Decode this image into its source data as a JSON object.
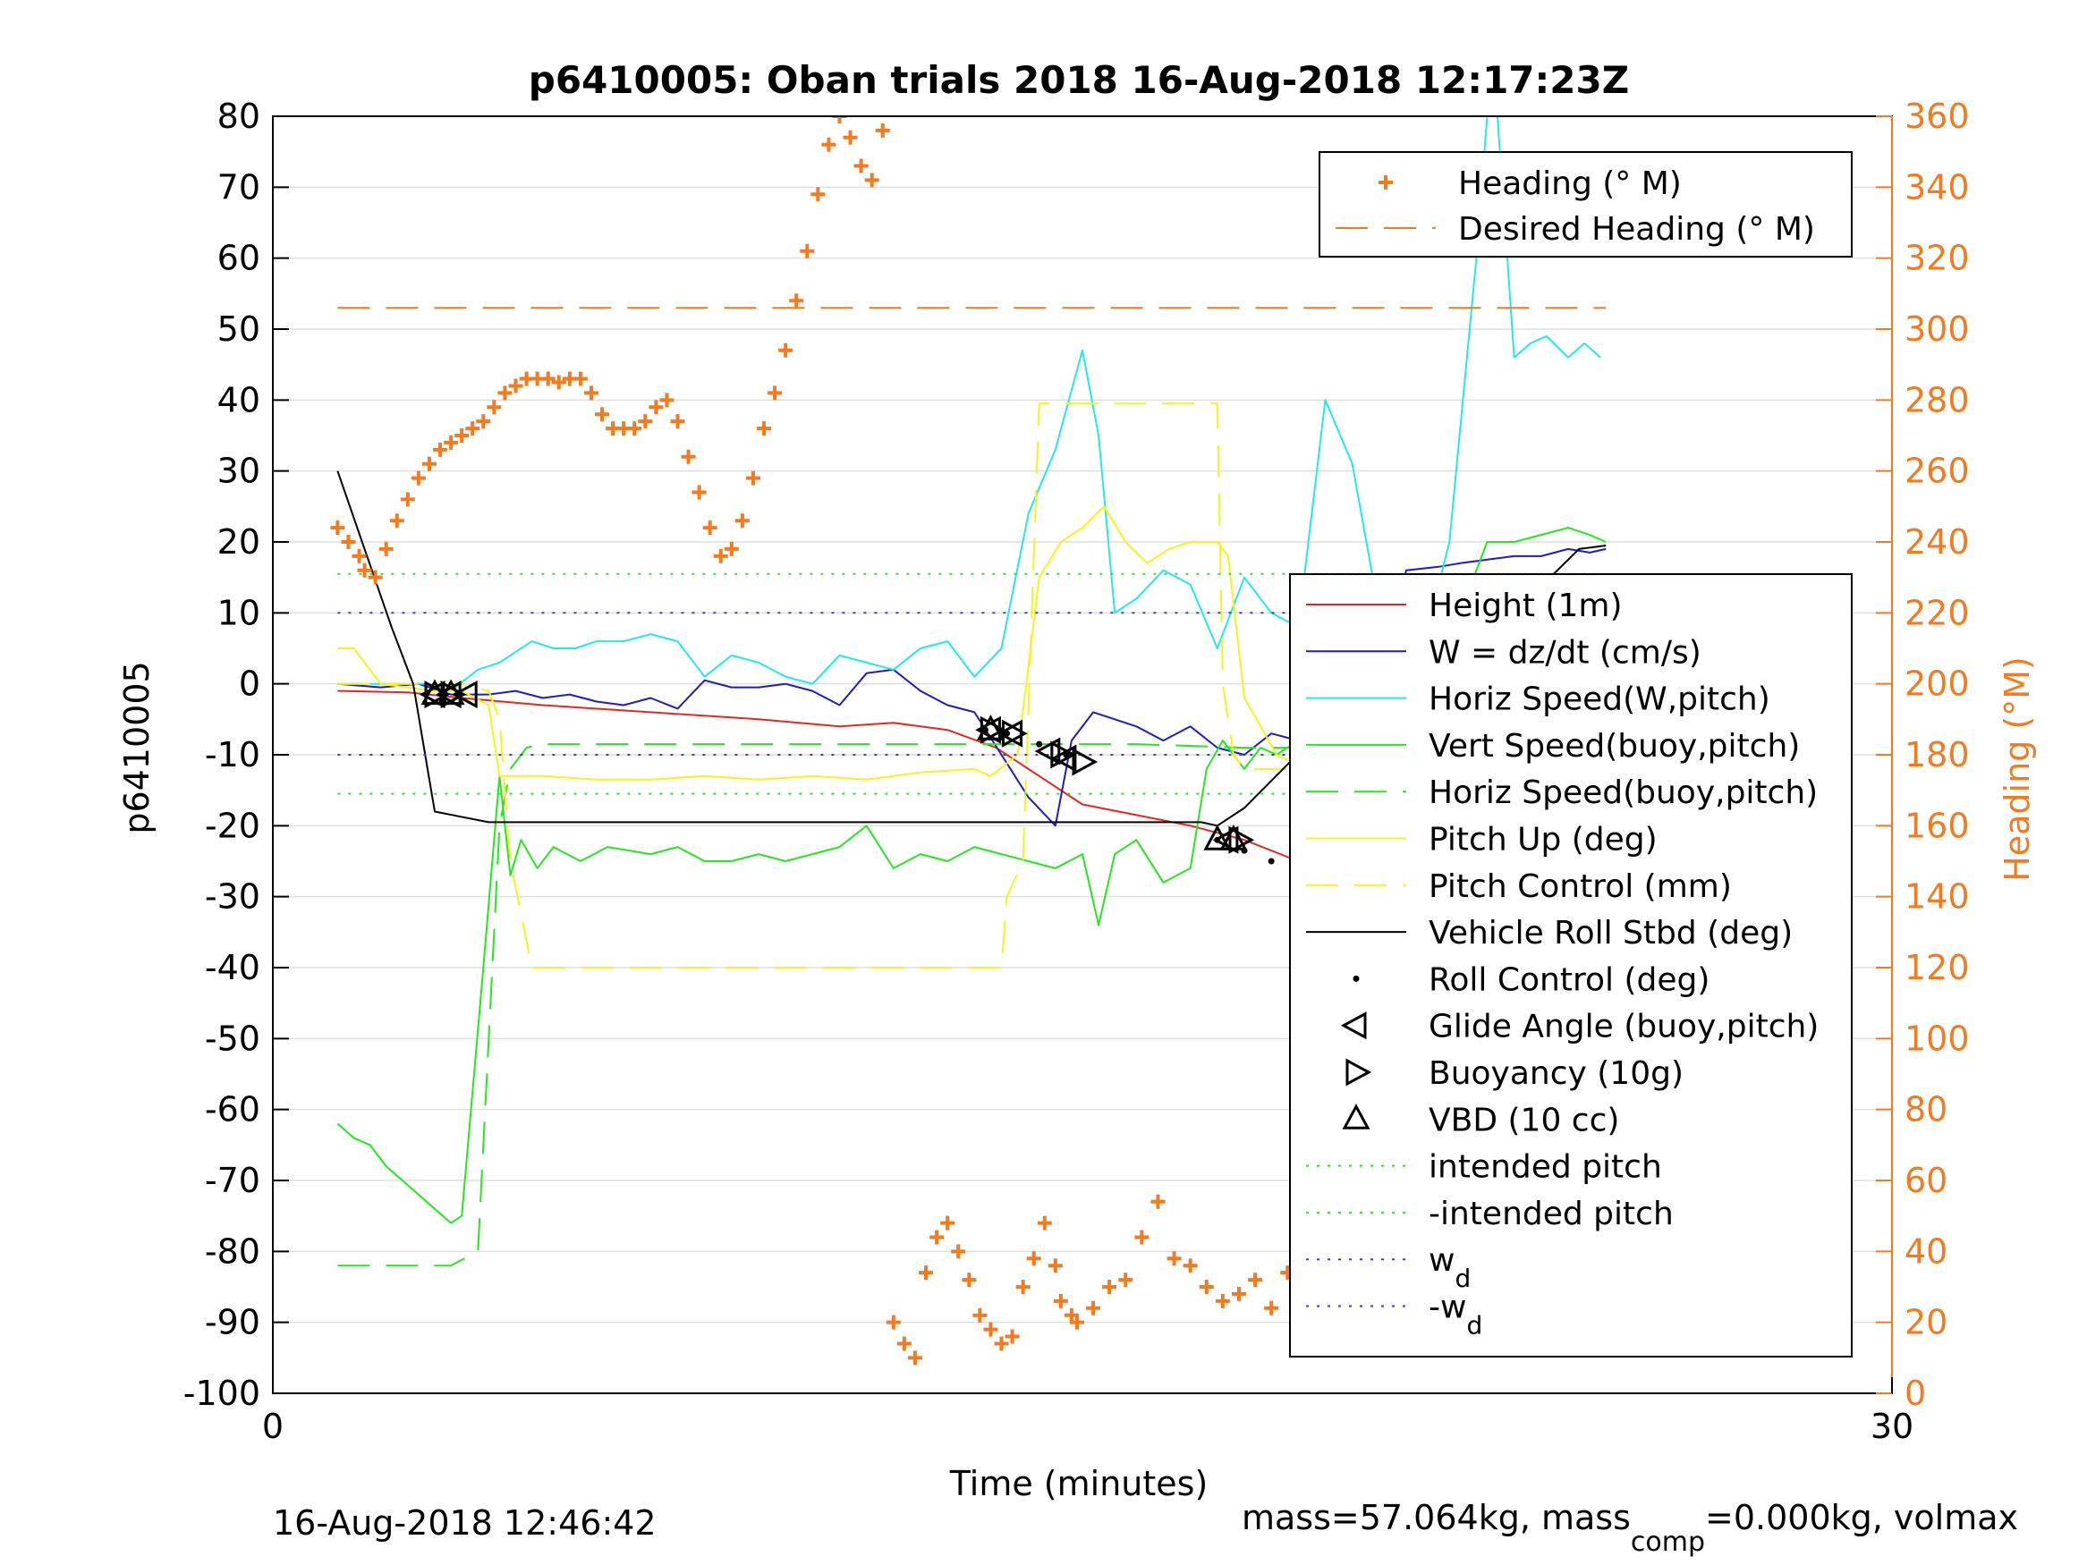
{
  "figure": {
    "title": "p6410005: Oban trials 2018 16-Aug-2018 12:17:23Z",
    "footer_left": "16-Aug-2018 12:46:42",
    "footer_right_prefix": "mass=57.064kg, mass",
    "footer_right_sub": "comp",
    "footer_right_suffix": "=0.000kg, volmax"
  },
  "colors": {
    "height": "#e8261f",
    "w": "#1c1cc8",
    "cyan": "#22e8e8",
    "green": "#22e81e",
    "yellow": "#f4f41c",
    "black": "#000000",
    "orange": "#f47a20",
    "blue_dot": "#3a3ae8"
  },
  "chart_data": {
    "type": "line",
    "xlabel": "Time (minutes)",
    "ylabel": "p6410005",
    "y2label": "Heading (°M)",
    "xlim": [
      0,
      30
    ],
    "ylim": [
      -100,
      80
    ],
    "y2lim": [
      0,
      360
    ],
    "xticks": [
      0,
      30
    ],
    "yticks": [
      80,
      70,
      60,
      50,
      40,
      30,
      20,
      10,
      0,
      -10,
      -20,
      -30,
      -40,
      -50,
      -60,
      -70,
      -80,
      -90,
      -100
    ],
    "y2ticks": [
      360,
      340,
      320,
      300,
      280,
      260,
      240,
      220,
      200,
      180,
      160,
      140,
      120,
      100,
      80,
      60,
      40,
      20,
      0
    ],
    "grid": true,
    "legend_top": {
      "placement": "top-right",
      "entries": [
        {
          "label": "Heading (° M)",
          "style": "plus",
          "color": "#f47a20"
        },
        {
          "label": "Desired Heading (° M)",
          "style": "dashed",
          "color": "#f47a20"
        }
      ]
    },
    "legend_main": {
      "placement": "right",
      "entries": [
        {
          "label": "Height (1m)",
          "style": "solid",
          "color": "#e8261f"
        },
        {
          "label": "W = dz/dt (cm/s)",
          "style": "solid",
          "color": "#1c1cc8"
        },
        {
          "label": "Horiz Speed(W,pitch)",
          "style": "solid",
          "color": "#22e8e8"
        },
        {
          "label": "Vert Speed(buoy,pitch)",
          "style": "solid",
          "color": "#22e81e"
        },
        {
          "label": "Horiz Speed(buoy,pitch)",
          "style": "dashed",
          "color": "#22e81e"
        },
        {
          "label": "Pitch Up (deg)",
          "style": "solid",
          "color": "#f4f41c"
        },
        {
          "label": "Pitch Control (mm)",
          "style": "dashed",
          "color": "#f4f41c"
        },
        {
          "label": "Vehicle Roll Stbd (deg)",
          "style": "solid",
          "color": "#000000"
        },
        {
          "label": "Roll Control (deg)",
          "style": "dot",
          "color": "#000000"
        },
        {
          "label": "Glide Angle (buoy,pitch)",
          "style": "tri-left",
          "color": "#000000"
        },
        {
          "label": "Buoyancy (10g)",
          "style": "tri-right",
          "color": "#000000"
        },
        {
          "label": "VBD (10 cc)",
          "style": "tri-up",
          "color": "#000000"
        },
        {
          "label": "intended pitch",
          "style": "dotted",
          "color": "#22e81e"
        },
        {
          "label": "-intended pitch",
          "style": "dotted",
          "color": "#22e81e"
        },
        {
          "label": "w",
          "sub": "d",
          "style": "dotted",
          "color": "#3a3ae8"
        },
        {
          "label": "-w",
          "sub": "d",
          "style": "dotted",
          "color": "#3a3ae8"
        }
      ]
    },
    "series": [
      {
        "name": "Height (1m)",
        "axis": "left",
        "color": "#e8261f",
        "x": [
          1.2,
          2.5,
          3.5,
          5,
          7,
          9,
          10.5,
          11.5,
          12.5,
          13.4,
          14,
          15,
          16,
          17,
          18,
          19,
          19.8,
          20.5,
          21,
          21.8,
          22.6,
          23.7,
          24.6,
          24.9
        ],
        "y": [
          -1,
          -1.2,
          -2,
          -3,
          -4,
          -5,
          -6,
          -5.5,
          -6.5,
          -9,
          -12,
          -17,
          -18.5,
          -20,
          -22,
          -25,
          -27,
          -27,
          -27,
          -26,
          -24.5,
          -14,
          -6,
          -0.5
        ]
      },
      {
        "name": "W = dz/dt (cm/s)",
        "axis": "left",
        "color": "#1c1cc8",
        "x": [
          1.2,
          2,
          2.7,
          3.3,
          4,
          4.5,
          5,
          5.5,
          6,
          6.5,
          7,
          7.5,
          8,
          8.5,
          9,
          9.5,
          10,
          10.5,
          11,
          11.5,
          12,
          12.5,
          13,
          13.5,
          14,
          14.5,
          14.8,
          15.2,
          15.6,
          16,
          16.5,
          17,
          17.5,
          18,
          18.5,
          19,
          19.5,
          20,
          20.5,
          21,
          21.6,
          22,
          22.5,
          23,
          23.5,
          24,
          24.4,
          24.7
        ],
        "y": [
          0,
          -0.5,
          0,
          -1.5,
          -1.5,
          -1,
          -2,
          -1.5,
          -2.5,
          -3,
          -2,
          -3.5,
          0.5,
          -0.5,
          -0.5,
          0,
          -1,
          -3,
          1.5,
          2,
          -1,
          -3,
          -4,
          -10,
          -16,
          -20,
          -8,
          -4,
          -5,
          -6,
          -8,
          -6,
          -9,
          -10,
          -7,
          -8,
          -7,
          -5,
          2,
          16,
          16.5,
          17,
          17.5,
          18,
          18,
          19,
          18.5,
          19
        ]
      },
      {
        "name": "Horiz Speed(W,pitch)",
        "axis": "left",
        "color": "#22e8e8",
        "x": [
          1.2,
          2,
          2.8,
          3.3,
          3.8,
          4.2,
          4.8,
          5.2,
          5.6,
          6,
          6.5,
          7,
          7.5,
          8,
          8.5,
          9,
          9.5,
          10,
          10.5,
          11,
          11.5,
          12,
          12.5,
          13,
          13.5,
          14,
          14.5,
          15,
          15.3,
          15.6,
          16,
          16.5,
          17,
          17.5,
          18,
          18.5,
          19,
          19.5,
          20,
          20.5,
          20.8,
          21.1,
          21.4,
          21.8,
          22.3,
          22.6,
          23,
          23.3,
          23.6,
          24,
          24.3,
          24.6
        ],
        "y": [
          0,
          0,
          0,
          -1,
          2,
          3,
          6,
          5,
          5,
          6,
          6,
          7,
          6,
          1,
          4,
          3,
          1,
          0,
          4,
          3,
          2,
          5,
          6,
          1,
          5,
          24,
          33,
          47,
          35,
          10,
          12,
          16,
          14,
          5,
          15,
          10,
          8,
          40,
          31,
          10,
          0,
          1,
          8,
          20,
          60,
          90,
          46,
          48,
          49,
          46,
          48,
          46
        ]
      },
      {
        "name": "Vert Speed(buoy,pitch)",
        "axis": "left",
        "color": "#22e81e",
        "x": [
          1.2,
          1.5,
          1.8,
          2.1,
          2.4,
          2.7,
          3,
          3.3,
          3.5,
          3.9,
          4.2,
          4.4,
          4.6,
          4.9,
          5.2,
          5.7,
          6.2,
          7,
          7.5,
          8,
          8.5,
          9,
          9.5,
          10,
          10.5,
          11,
          11.5,
          12,
          12.5,
          13,
          13.5,
          14,
          14.5,
          15,
          15.3,
          15.6,
          16,
          16.5,
          17,
          17.3,
          17.6,
          18,
          18.3,
          18.6,
          19,
          19.5,
          20,
          20.5,
          21,
          21.5,
          22,
          22.5,
          23,
          23.5,
          24,
          24.4,
          24.7
        ],
        "y": [
          -62,
          -64,
          -65,
          -68,
          -70,
          -72,
          -74,
          -76,
          -75,
          -40,
          -13,
          -27,
          -22,
          -26,
          -23,
          -25,
          -23,
          -24,
          -23,
          -25,
          -25,
          -24,
          -25,
          -24,
          -23,
          -20,
          -26,
          -24,
          -25,
          -23,
          -24,
          -25,
          -26,
          -24,
          -34,
          -24,
          -22,
          -28,
          -26,
          -12,
          -8,
          -12,
          -9,
          -10,
          -8,
          -14,
          -15,
          -10,
          -5,
          2,
          10,
          20,
          20,
          21,
          22,
          21,
          20
        ]
      },
      {
        "name": "Horiz Speed(buoy,pitch)",
        "axis": "left",
        "color": "#22e81e",
        "dash": true,
        "x": [
          1.2,
          2.8,
          3.3,
          3.8,
          4.2,
          4.4,
          4.7,
          5,
          6,
          8,
          10,
          12,
          14,
          16,
          18,
          20,
          22,
          24,
          24.7
        ],
        "y": [
          -82,
          -82,
          -82,
          -80,
          -20,
          -12,
          -9,
          -8.5,
          -8.5,
          -8.5,
          -8.5,
          -8.5,
          -8.5,
          -8.5,
          -9,
          -9,
          -8.5,
          -8.5,
          -8.5
        ]
      },
      {
        "name": "Pitch Up (deg)",
        "axis": "left",
        "color": "#f4f41c",
        "x": [
          1.2,
          1.5,
          2,
          3,
          3.5,
          4,
          4.2,
          4.6,
          5,
          6,
          7,
          8,
          9,
          10,
          11,
          12,
          13,
          13.3,
          13.8,
          14.2,
          14.6,
          15,
          15.4,
          15.8,
          16.2,
          16.6,
          17,
          17.5,
          17.7,
          18,
          18.6,
          19.2,
          20,
          21,
          22,
          22.7,
          23,
          23.4,
          23.8,
          24.2,
          24.5,
          24.7
        ],
        "y": [
          5,
          5,
          0,
          -1,
          -1,
          -3,
          -13,
          -13,
          -13,
          -13.5,
          -13.5,
          -13,
          -13.5,
          -13,
          -13.5,
          -12.5,
          -12,
          -13,
          -10,
          15,
          20,
          22,
          25,
          20,
          17,
          19,
          20,
          20,
          18,
          -2,
          -10,
          -12,
          -1,
          0,
          1.5,
          2,
          1,
          3.5,
          2,
          0,
          -14,
          -15
        ]
      },
      {
        "name": "Pitch Control (mm)",
        "axis": "left",
        "color": "#f4f41c",
        "dash": true,
        "x": [
          1.2,
          3,
          3.5,
          4,
          4.2,
          4.4,
          4.8,
          6,
          8,
          10,
          12,
          13.2,
          13.5,
          13.6,
          13.9,
          14.2,
          15,
          16,
          17,
          17.5,
          17.6,
          17.8,
          18,
          19,
          20,
          21,
          22,
          23,
          24,
          24.2,
          24.6,
          24.8
        ],
        "y": [
          0,
          0,
          0,
          -1,
          -5,
          -25,
          -40,
          -40,
          -40,
          -40,
          -40,
          -40,
          -40,
          -30,
          -25,
          39.5,
          39.5,
          39.5,
          39.5,
          39.5,
          0,
          -10,
          -12,
          -12,
          0,
          0,
          0,
          0,
          0,
          -20,
          -39.5,
          -39.5
        ]
      },
      {
        "name": "Vehicle Roll Stbd (deg)",
        "axis": "left",
        "color": "#000000",
        "x": [
          1.2,
          2.2,
          2.6,
          3,
          4,
          6,
          8,
          10,
          12,
          14,
          16,
          17.2,
          17.5,
          18,
          19.5,
          20.5,
          21.8,
          23,
          24.2,
          24.7
        ],
        "y": [
          30,
          8,
          0,
          -18,
          -19.5,
          -19.5,
          -19.5,
          -19.5,
          -19.5,
          -19.5,
          -19.5,
          -19.5,
          -20,
          -17.5,
          -6,
          0,
          0.5,
          10,
          19,
          19.5
        ]
      },
      {
        "name": "Roll Control (deg)",
        "axis": "left",
        "color": "#000000",
        "marker": "dot",
        "x": [
          13.2,
          13.6,
          14.2,
          14.7,
          17.5,
          18,
          18.5,
          19,
          19.5,
          20,
          20.5,
          21,
          21.4,
          23.8,
          24,
          24.2,
          24.4,
          24.6
        ],
        "y": [
          -6.5,
          -7,
          -8.5,
          -10,
          -22,
          -23.5,
          -25,
          -26,
          -26.5,
          -27,
          -27,
          -26.5,
          -25.5,
          -13,
          -11,
          -9,
          -7,
          -4.5
        ]
      },
      {
        "name": "Glide Angle (buoy,pitch)",
        "axis": "left",
        "color": "#000000",
        "marker": "tri-left",
        "x": [
          3,
          3.3,
          3.6,
          13.3,
          13.7,
          14.4,
          14.7,
          17.7,
          24.7
        ],
        "y": [
          -1.5,
          -1.5,
          -1.5,
          -6.5,
          -7,
          -9.5,
          -10.5,
          -22,
          -3
        ]
      },
      {
        "name": "Buoyancy (10g)",
        "axis": "left",
        "color": "#000000",
        "marker": "tri-right",
        "x": [
          3,
          3.3,
          13.3,
          13.7,
          14.6,
          15,
          17.9,
          20.4
        ],
        "y": [
          -1.5,
          -1.5,
          -6.5,
          -7,
          -10,
          -11,
          -22,
          -24.5
        ]
      },
      {
        "name": "VBD (10 cc)",
        "axis": "left",
        "color": "#000000",
        "marker": "tri-up",
        "x": [
          3,
          3.3,
          13.3,
          17.5,
          17.8,
          20.2,
          22.2,
          23.7,
          24.6
        ],
        "y": [
          -1.5,
          -1.5,
          -6.5,
          -22,
          -22,
          -25,
          -14,
          -5,
          -3
        ]
      },
      {
        "name": "intended pitch",
        "axis": "left",
        "color": "#22e81e",
        "dotted": true,
        "x": [
          1.2,
          24.7
        ],
        "y": [
          15.5,
          15.5
        ]
      },
      {
        "name": "-intended pitch",
        "axis": "left",
        "color": "#22e81e",
        "dotted": true,
        "x": [
          1.2,
          24.7
        ],
        "y": [
          -15.5,
          -15.5
        ]
      },
      {
        "name": "wd",
        "axis": "left",
        "color": "#3a3ae8",
        "dotted": true,
        "x": [
          1.2,
          24.7
        ],
        "y": [
          10,
          10
        ]
      },
      {
        "name": "-wd",
        "axis": "left",
        "color": "#3a3ae8",
        "dotted": true,
        "x": [
          1.2,
          24.7
        ],
        "y": [
          -10,
          -10
        ]
      },
      {
        "name": "Desired Heading (° M)",
        "axis": "right",
        "color": "#f47a20",
        "dash": true,
        "x": [
          1.2,
          24.7
        ],
        "y": [
          306,
          306
        ]
      },
      {
        "name": "Heading (° M)",
        "axis": "right",
        "color": "#f47a20",
        "marker": "plus",
        "x": [
          1.2,
          1.4,
          1.6,
          1.7,
          1.9,
          2.1,
          2.3,
          2.5,
          2.7,
          2.9,
          3.1,
          3.3,
          3.5,
          3.7,
          3.9,
          4.1,
          4.3,
          4.5,
          4.7,
          4.9,
          5.1,
          5.3,
          5.5,
          5.7,
          5.9,
          6.1,
          6.3,
          6.5,
          6.7,
          6.9,
          7.1,
          7.3,
          7.5,
          7.7,
          7.9,
          8.1,
          8.3,
          8.5,
          8.7,
          8.9,
          9.1,
          9.3,
          9.5,
          9.7,
          9.9,
          10.1,
          10.3,
          10.5,
          10.7,
          10.9,
          11.1,
          11.3,
          11.5,
          11.7,
          11.9,
          12.1,
          12.3,
          12.5,
          12.7,
          12.9,
          13.1,
          13.3,
          13.5,
          13.7,
          13.9,
          14.1,
          14.3,
          14.5,
          14.6,
          14.8,
          14.9,
          15.2,
          15.5,
          15.8,
          16.1,
          16.4,
          16.7,
          17,
          17.3,
          17.6,
          17.9,
          18.2,
          18.5,
          18.8,
          19.1,
          19.4,
          19.7,
          20,
          20.3,
          20.6,
          21,
          22,
          22.3,
          22.6,
          22.9,
          23.2,
          23.5,
          23.8,
          24.1,
          24.4,
          24.6
        ],
        "y": [
          244,
          240,
          236,
          232,
          230,
          238,
          246,
          252,
          258,
          262,
          266,
          268,
          270,
          272,
          274,
          278,
          282,
          284,
          286,
          286,
          286,
          285,
          286,
          286,
          282,
          276,
          272,
          272,
          272,
          274,
          278,
          280,
          274,
          264,
          254,
          244,
          236,
          238,
          246,
          258,
          272,
          282,
          294,
          308,
          322,
          338,
          352,
          360,
          354,
          346,
          342,
          356,
          20,
          14,
          10,
          34,
          44,
          48,
          40,
          32,
          22,
          18,
          14,
          16,
          30,
          38,
          48,
          36,
          26,
          22,
          20,
          24,
          30,
          32,
          44,
          54,
          38,
          36,
          30,
          26,
          28,
          32,
          24,
          34,
          30,
          26,
          34,
          54,
          24,
          40,
          60,
          80,
          86,
          92,
          96,
          90,
          84,
          80,
          70,
          60,
          68
        ]
      }
    ]
  }
}
